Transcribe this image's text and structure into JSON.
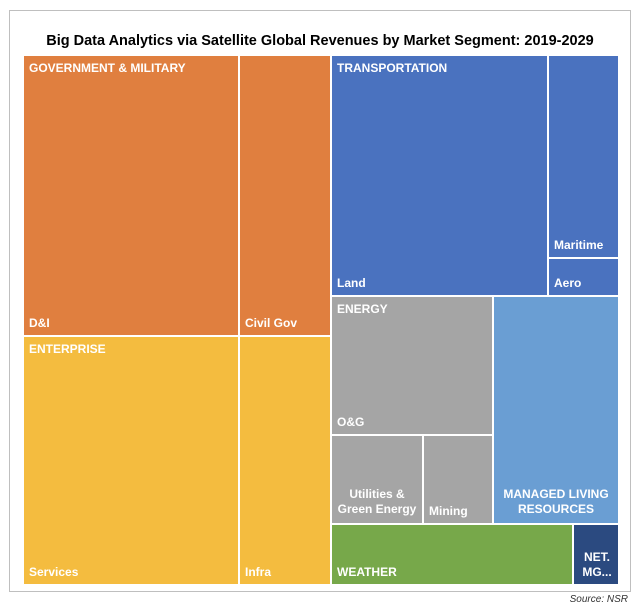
{
  "chart_data": {
    "type": "treemap",
    "title": "Big Data Analytics via Satellite Global Revenues by Market Segment: 2019-2029",
    "source": "Source: NSR",
    "groups": [
      {
        "name": "GOVERNMENT & MILITARY",
        "color": "#E07F3F",
        "items": [
          {
            "name": "D&I"
          },
          {
            "name": "Civil Gov"
          }
        ]
      },
      {
        "name": "ENTERPRISE",
        "color": "#F4BC3F",
        "items": [
          {
            "name": "Services"
          },
          {
            "name": "Infra"
          }
        ]
      },
      {
        "name": "TRANSPORTATION",
        "color": "#4A72BF",
        "items": [
          {
            "name": "Land"
          },
          {
            "name": "Maritime"
          },
          {
            "name": "Aero"
          }
        ]
      },
      {
        "name": "ENERGY",
        "color": "#A5A5A5",
        "items": [
          {
            "name": "O&G"
          },
          {
            "name": "Utilities & Green Energy"
          },
          {
            "name": "Mining"
          }
        ]
      },
      {
        "name": "MANAGED LIVING RESOURCES",
        "color": "#6A9ED3",
        "items": []
      },
      {
        "name": "WEATHER",
        "color": "#77A84A",
        "items": []
      },
      {
        "name": "NET. MG...",
        "color": "#2B4A80",
        "items": []
      }
    ],
    "legend": "none"
  }
}
